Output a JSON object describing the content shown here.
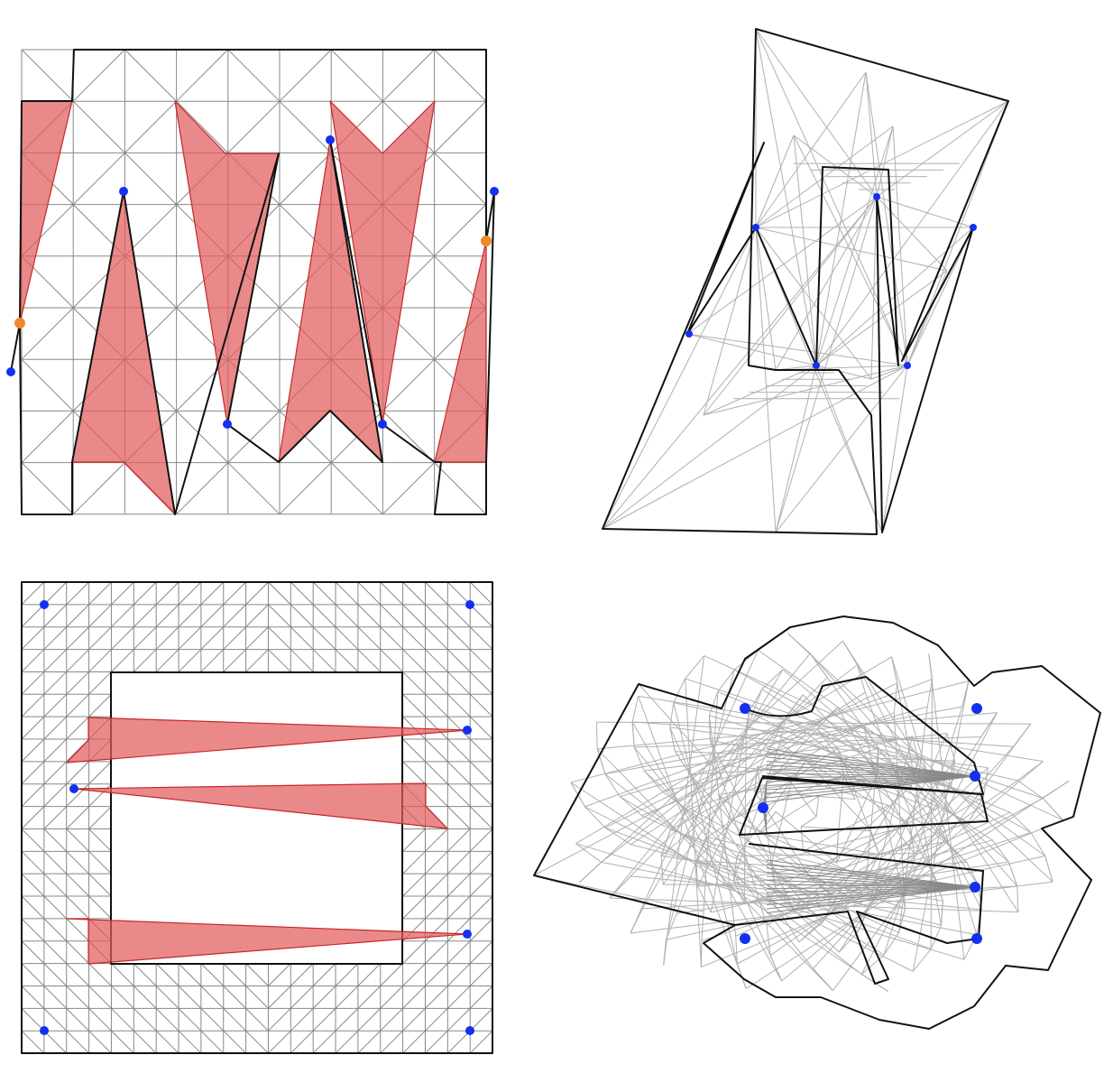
{
  "figure": {
    "panel_count": 4,
    "colors": {
      "mesh_edge": "#888888",
      "mesh_edge_light": "#b0b0b0",
      "boundary": "#111111",
      "overlap_fill": "#e25c5c",
      "overlap_edge": "#c62828",
      "singular_point": "#1330f0",
      "boundary_singular_point": "#ef8a2c"
    },
    "icons": [
      "blue-dot",
      "orange-dot"
    ]
  }
}
